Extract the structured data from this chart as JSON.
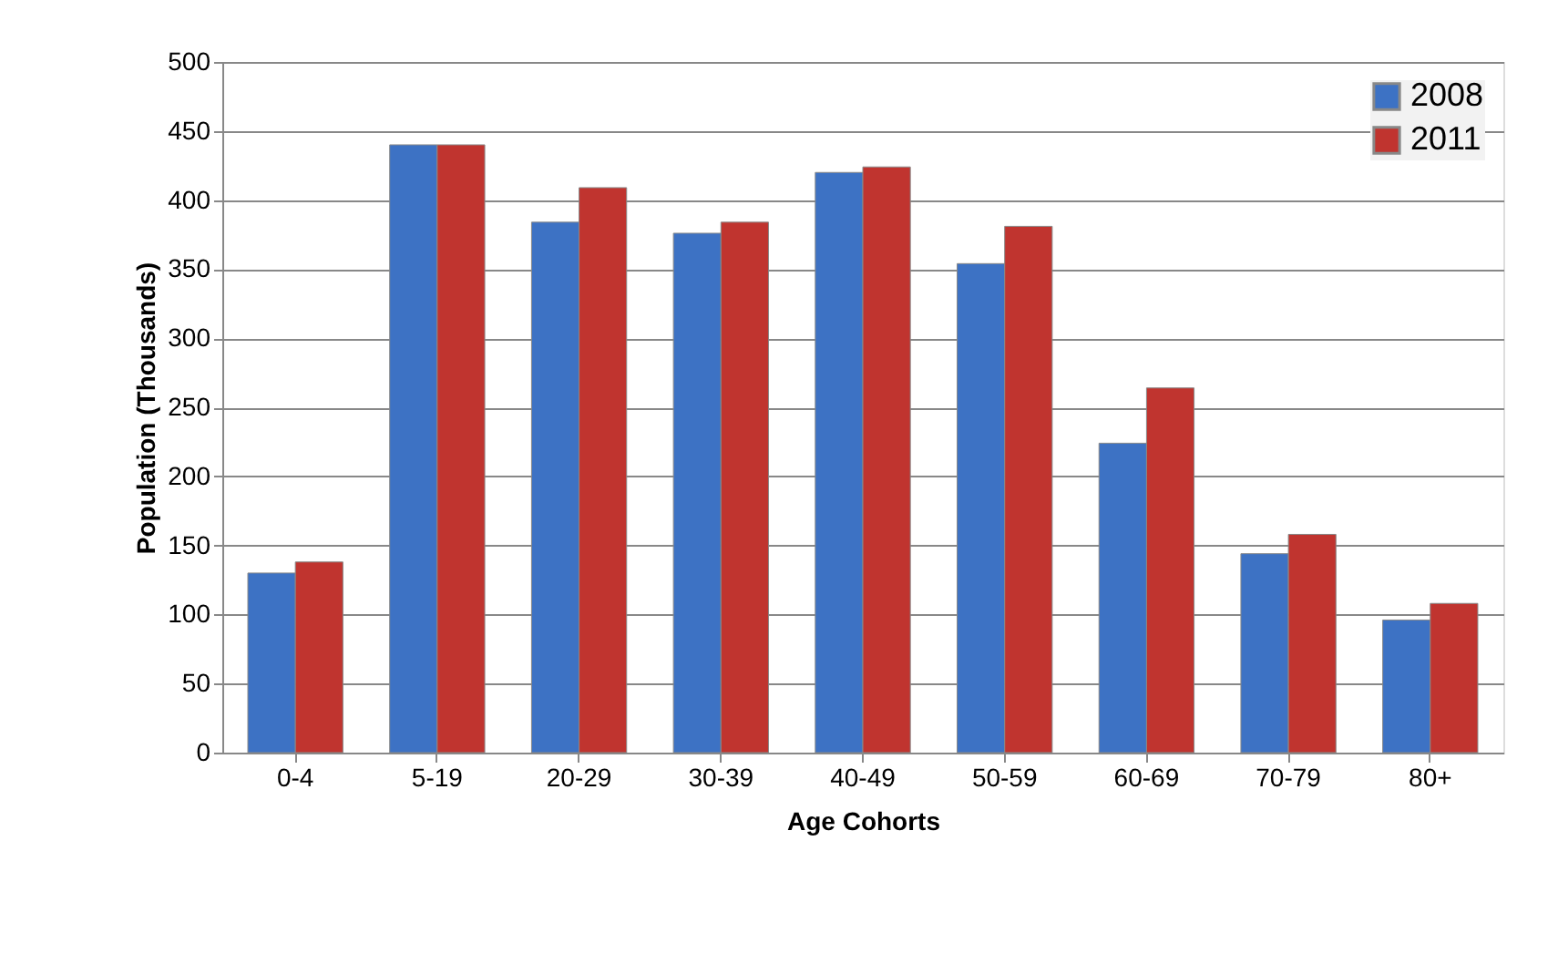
{
  "chart_data": {
    "type": "bar",
    "xlabel": "Age Cohorts",
    "ylabel": "Population (Thousands)",
    "categories": [
      "0-4",
      "5-19",
      "20-29",
      "30-39",
      "40-49",
      "50-59",
      "60-69",
      "70-79",
      "80+"
    ],
    "series": [
      {
        "name": "2008",
        "color": "#3d72c4",
        "values": [
          130,
          440,
          384,
          376,
          420,
          354,
          224,
          144,
          96
        ]
      },
      {
        "name": "2011",
        "color": "#c0342f",
        "values": [
          138,
          440,
          409,
          384,
          424,
          381,
          264,
          158,
          108
        ]
      }
    ],
    "ylim": [
      0,
      500
    ],
    "yticks": [
      0,
      50,
      100,
      150,
      200,
      250,
      300,
      350,
      400,
      450,
      500
    ],
    "grid": "y",
    "legend": "top right"
  }
}
